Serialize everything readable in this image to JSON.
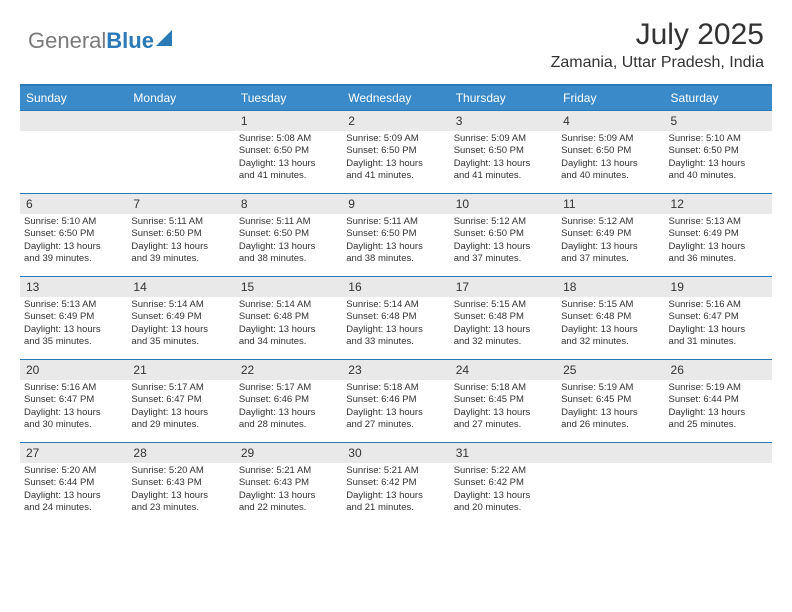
{
  "logo": {
    "text1": "General",
    "text2": "Blue"
  },
  "title": "July 2025",
  "location": "Zamania, Uttar Pradesh, India",
  "colors": {
    "header_bg": "#3a8ac9",
    "border": "#2a7ab8",
    "daynum_bg": "#e9e9e9",
    "logo_gray": "#7a7a7a",
    "logo_blue": "#2a7ab8",
    "text": "#333333",
    "bg": "#ffffff"
  },
  "fonts": {
    "month_title_size": 30,
    "location_size": 16,
    "dayheader_size": 12,
    "daynum_size": 12,
    "body_size": 9.5
  },
  "day_headers": [
    "Sunday",
    "Monday",
    "Tuesday",
    "Wednesday",
    "Thursday",
    "Friday",
    "Saturday"
  ],
  "weeks": [
    [
      {
        "empty": true
      },
      {
        "empty": true
      },
      {
        "num": "1",
        "sunrise": "Sunrise: 5:08 AM",
        "sunset": "Sunset: 6:50 PM",
        "d1": "Daylight: 13 hours",
        "d2": "and 41 minutes."
      },
      {
        "num": "2",
        "sunrise": "Sunrise: 5:09 AM",
        "sunset": "Sunset: 6:50 PM",
        "d1": "Daylight: 13 hours",
        "d2": "and 41 minutes."
      },
      {
        "num": "3",
        "sunrise": "Sunrise: 5:09 AM",
        "sunset": "Sunset: 6:50 PM",
        "d1": "Daylight: 13 hours",
        "d2": "and 41 minutes."
      },
      {
        "num": "4",
        "sunrise": "Sunrise: 5:09 AM",
        "sunset": "Sunset: 6:50 PM",
        "d1": "Daylight: 13 hours",
        "d2": "and 40 minutes."
      },
      {
        "num": "5",
        "sunrise": "Sunrise: 5:10 AM",
        "sunset": "Sunset: 6:50 PM",
        "d1": "Daylight: 13 hours",
        "d2": "and 40 minutes."
      }
    ],
    [
      {
        "num": "6",
        "sunrise": "Sunrise: 5:10 AM",
        "sunset": "Sunset: 6:50 PM",
        "d1": "Daylight: 13 hours",
        "d2": "and 39 minutes."
      },
      {
        "num": "7",
        "sunrise": "Sunrise: 5:11 AM",
        "sunset": "Sunset: 6:50 PM",
        "d1": "Daylight: 13 hours",
        "d2": "and 39 minutes."
      },
      {
        "num": "8",
        "sunrise": "Sunrise: 5:11 AM",
        "sunset": "Sunset: 6:50 PM",
        "d1": "Daylight: 13 hours",
        "d2": "and 38 minutes."
      },
      {
        "num": "9",
        "sunrise": "Sunrise: 5:11 AM",
        "sunset": "Sunset: 6:50 PM",
        "d1": "Daylight: 13 hours",
        "d2": "and 38 minutes."
      },
      {
        "num": "10",
        "sunrise": "Sunrise: 5:12 AM",
        "sunset": "Sunset: 6:50 PM",
        "d1": "Daylight: 13 hours",
        "d2": "and 37 minutes."
      },
      {
        "num": "11",
        "sunrise": "Sunrise: 5:12 AM",
        "sunset": "Sunset: 6:49 PM",
        "d1": "Daylight: 13 hours",
        "d2": "and 37 minutes."
      },
      {
        "num": "12",
        "sunrise": "Sunrise: 5:13 AM",
        "sunset": "Sunset: 6:49 PM",
        "d1": "Daylight: 13 hours",
        "d2": "and 36 minutes."
      }
    ],
    [
      {
        "num": "13",
        "sunrise": "Sunrise: 5:13 AM",
        "sunset": "Sunset: 6:49 PM",
        "d1": "Daylight: 13 hours",
        "d2": "and 35 minutes."
      },
      {
        "num": "14",
        "sunrise": "Sunrise: 5:14 AM",
        "sunset": "Sunset: 6:49 PM",
        "d1": "Daylight: 13 hours",
        "d2": "and 35 minutes."
      },
      {
        "num": "15",
        "sunrise": "Sunrise: 5:14 AM",
        "sunset": "Sunset: 6:48 PM",
        "d1": "Daylight: 13 hours",
        "d2": "and 34 minutes."
      },
      {
        "num": "16",
        "sunrise": "Sunrise: 5:14 AM",
        "sunset": "Sunset: 6:48 PM",
        "d1": "Daylight: 13 hours",
        "d2": "and 33 minutes."
      },
      {
        "num": "17",
        "sunrise": "Sunrise: 5:15 AM",
        "sunset": "Sunset: 6:48 PM",
        "d1": "Daylight: 13 hours",
        "d2": "and 32 minutes."
      },
      {
        "num": "18",
        "sunrise": "Sunrise: 5:15 AM",
        "sunset": "Sunset: 6:48 PM",
        "d1": "Daylight: 13 hours",
        "d2": "and 32 minutes."
      },
      {
        "num": "19",
        "sunrise": "Sunrise: 5:16 AM",
        "sunset": "Sunset: 6:47 PM",
        "d1": "Daylight: 13 hours",
        "d2": "and 31 minutes."
      }
    ],
    [
      {
        "num": "20",
        "sunrise": "Sunrise: 5:16 AM",
        "sunset": "Sunset: 6:47 PM",
        "d1": "Daylight: 13 hours",
        "d2": "and 30 minutes."
      },
      {
        "num": "21",
        "sunrise": "Sunrise: 5:17 AM",
        "sunset": "Sunset: 6:47 PM",
        "d1": "Daylight: 13 hours",
        "d2": "and 29 minutes."
      },
      {
        "num": "22",
        "sunrise": "Sunrise: 5:17 AM",
        "sunset": "Sunset: 6:46 PM",
        "d1": "Daylight: 13 hours",
        "d2": "and 28 minutes."
      },
      {
        "num": "23",
        "sunrise": "Sunrise: 5:18 AM",
        "sunset": "Sunset: 6:46 PM",
        "d1": "Daylight: 13 hours",
        "d2": "and 27 minutes."
      },
      {
        "num": "24",
        "sunrise": "Sunrise: 5:18 AM",
        "sunset": "Sunset: 6:45 PM",
        "d1": "Daylight: 13 hours",
        "d2": "and 27 minutes."
      },
      {
        "num": "25",
        "sunrise": "Sunrise: 5:19 AM",
        "sunset": "Sunset: 6:45 PM",
        "d1": "Daylight: 13 hours",
        "d2": "and 26 minutes."
      },
      {
        "num": "26",
        "sunrise": "Sunrise: 5:19 AM",
        "sunset": "Sunset: 6:44 PM",
        "d1": "Daylight: 13 hours",
        "d2": "and 25 minutes."
      }
    ],
    [
      {
        "num": "27",
        "sunrise": "Sunrise: 5:20 AM",
        "sunset": "Sunset: 6:44 PM",
        "d1": "Daylight: 13 hours",
        "d2": "and 24 minutes."
      },
      {
        "num": "28",
        "sunrise": "Sunrise: 5:20 AM",
        "sunset": "Sunset: 6:43 PM",
        "d1": "Daylight: 13 hours",
        "d2": "and 23 minutes."
      },
      {
        "num": "29",
        "sunrise": "Sunrise: 5:21 AM",
        "sunset": "Sunset: 6:43 PM",
        "d1": "Daylight: 13 hours",
        "d2": "and 22 minutes."
      },
      {
        "num": "30",
        "sunrise": "Sunrise: 5:21 AM",
        "sunset": "Sunset: 6:42 PM",
        "d1": "Daylight: 13 hours",
        "d2": "and 21 minutes."
      },
      {
        "num": "31",
        "sunrise": "Sunrise: 5:22 AM",
        "sunset": "Sunset: 6:42 PM",
        "d1": "Daylight: 13 hours",
        "d2": "and 20 minutes."
      },
      {
        "empty": true
      },
      {
        "empty": true
      }
    ]
  ]
}
